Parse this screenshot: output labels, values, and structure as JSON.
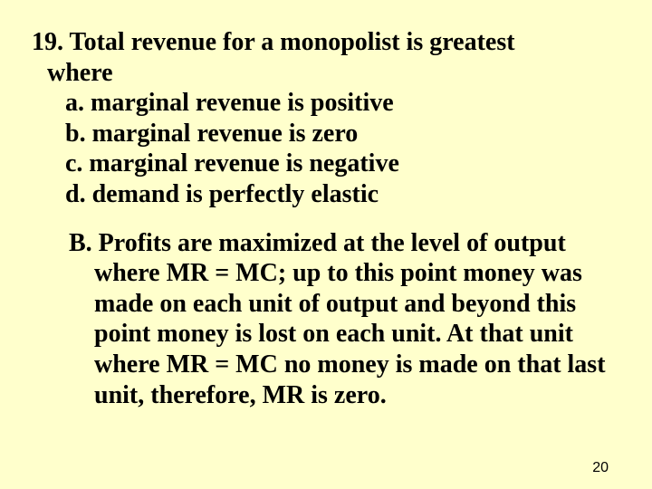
{
  "background_color": "#ffffcc",
  "text_color": "#000000",
  "question_fontsize": 28,
  "answer_fontsize": 28,
  "pagenum_fontsize": 16,
  "question": {
    "number": "19.",
    "stem_line1": "19. Total revenue for a monopolist is greatest",
    "stem_line2": "where",
    "options": {
      "a": "a. marginal revenue is positive",
      "b": "b. marginal revenue is zero",
      "c": "c. marginal revenue is negative",
      "d": "d. demand is perfectly elastic"
    }
  },
  "answer": {
    "label": "B.",
    "text": "B.  Profits are maximized at the level of output where MR = MC; up to this point money was made on each unit of output and beyond this point money is lost on each unit. At that unit where MR = MC no money is made on that last unit, therefore, MR is zero."
  },
  "page_number": "20"
}
